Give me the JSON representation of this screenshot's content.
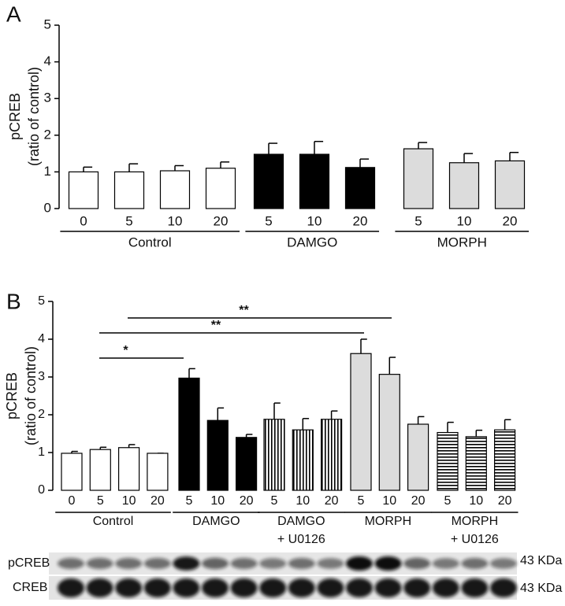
{
  "chart_data": [
    {
      "type": "bar",
      "panel_label": "A",
      "y_label": [
        "pCREB",
        "(ratio of control)"
      ],
      "ylim": [
        0,
        5
      ],
      "yticks": [
        0,
        1,
        2,
        3,
        4,
        5
      ],
      "groups": [
        {
          "name": [
            "Control"
          ],
          "categories": [
            "0",
            "5",
            "10",
            "20"
          ],
          "values": [
            1.0,
            1.0,
            1.03,
            1.1
          ],
          "errors": [
            0.13,
            0.22,
            0.14,
            0.17
          ],
          "color": "#ffffff"
        },
        {
          "name": [
            "DAMGO"
          ],
          "categories": [
            "5",
            "10",
            "20"
          ],
          "values": [
            1.48,
            1.48,
            1.12
          ],
          "errors": [
            0.3,
            0.35,
            0.23
          ],
          "color": "#000000"
        },
        {
          "name": [
            "MORPH"
          ],
          "categories": [
            "5",
            "10",
            "20"
          ],
          "values": [
            1.63,
            1.25,
            1.3
          ],
          "errors": [
            0.17,
            0.25,
            0.23
          ],
          "color": "#dcdcdc"
        }
      ]
    },
    {
      "type": "bar",
      "panel_label": "B",
      "y_label": [
        "pCREB",
        "(ratio of control)"
      ],
      "ylim": [
        0,
        5
      ],
      "yticks": [
        0,
        1,
        2,
        3,
        4,
        5
      ],
      "groups": [
        {
          "name": [
            "Control"
          ],
          "categories": [
            "0",
            "5",
            "10",
            "20"
          ],
          "values": [
            0.98,
            1.08,
            1.13,
            0.98
          ],
          "errors": [
            0.05,
            0.06,
            0.08,
            0
          ],
          "color": "#ffffff"
        },
        {
          "name": [
            "DAMGO"
          ],
          "categories": [
            "5",
            "10",
            "20"
          ],
          "values": [
            2.97,
            1.85,
            1.4
          ],
          "errors": [
            0.25,
            0.33,
            0.08
          ],
          "color": "#000000"
        },
        {
          "name": [
            "DAMGO",
            "+ U0126"
          ],
          "categories": [
            "5",
            "10",
            "20"
          ],
          "values": [
            1.88,
            1.6,
            1.88
          ],
          "errors": [
            0.43,
            0.3,
            0.22
          ],
          "color": "#ffffff",
          "hatch": "vertical"
        },
        {
          "name": [
            "MORPH"
          ],
          "categories": [
            "5",
            "10",
            "20"
          ],
          "values": [
            3.62,
            3.07,
            1.75
          ],
          "errors": [
            0.38,
            0.45,
            0.2
          ],
          "color": "#dcdcdc"
        },
        {
          "name": [
            "MORPH",
            "+ U0126"
          ],
          "categories": [
            "5",
            "10",
            "20"
          ],
          "values": [
            1.53,
            1.42,
            1.6
          ],
          "errors": [
            0.27,
            0.17,
            0.27
          ],
          "color": "#ffffff",
          "hatch": "horizontal"
        }
      ],
      "annotations": [
        {
          "text": "*"
        },
        {
          "text": "**"
        },
        {
          "text": "**"
        }
      ]
    }
  ],
  "blot": {
    "rows": [
      {
        "label": "pCREB",
        "size": "43 KDa"
      },
      {
        "label": "CREB",
        "size": "43 KDa"
      }
    ]
  }
}
